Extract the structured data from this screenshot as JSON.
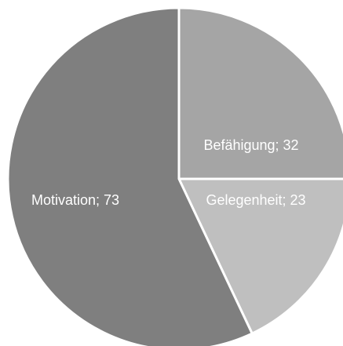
{
  "chart_data": {
    "type": "pie",
    "categories": [
      "Befähigung",
      "Gelegenheit",
      "Motivation"
    ],
    "values": [
      32,
      23,
      73
    ],
    "value_labels": [
      "Befähigung; 32",
      "Gelegenheit; 23",
      "Motivation; 73"
    ],
    "colors": [
      "#a5a5a5",
      "#bfbfbf",
      "#7f7f7f"
    ]
  }
}
